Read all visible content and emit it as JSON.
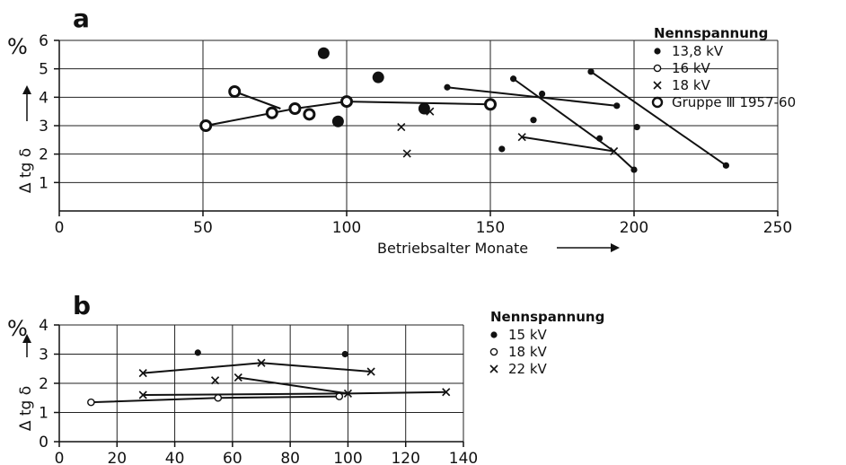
{
  "chart_data": [
    {
      "panel_label": "a",
      "type": "scatter",
      "xlabel": "Betriebsalter  Monate",
      "ylabel": "Δ tg δ",
      "y_unit": "%",
      "xlim": [
        0,
        250
      ],
      "ylim": [
        0,
        6
      ],
      "x_ticks": [
        "0",
        "50",
        "100",
        "150",
        "200",
        "250"
      ],
      "y_ticks": [
        "1",
        "2",
        "3",
        "4",
        "5",
        "6"
      ],
      "legend_title": "Nennspannung",
      "legend": [
        {
          "marker": "filled-dot",
          "label": "13,8 kV"
        },
        {
          "marker": "open-dot",
          "label": "16   kV"
        },
        {
          "marker": "cross",
          "label": "18   kV"
        },
        {
          "marker": "group-ring",
          "label": "Gruppe Ⅲ 1957-60"
        }
      ],
      "grid": true,
      "points": {
        "filled-dot": [
          [
            135,
            4.35
          ],
          [
            158,
            4.65
          ],
          [
            168,
            4.12
          ],
          [
            194,
            3.7
          ],
          [
            165,
            3.2
          ],
          [
            154,
            2.18
          ],
          [
            188,
            2.55
          ],
          [
            201,
            2.95
          ],
          [
            185,
            4.9
          ],
          [
            200,
            1.45
          ],
          [
            232,
            1.6
          ]
        ],
        "group-ring": [
          [
            51,
            3.0
          ],
          [
            61,
            4.2
          ],
          [
            74,
            3.45
          ],
          [
            82,
            3.6
          ],
          [
            87,
            3.4
          ],
          [
            100,
            3.85
          ],
          [
            150,
            3.75
          ]
        ],
        "group-filled": [
          [
            92,
            5.55
          ],
          [
            111,
            4.7
          ],
          [
            97,
            3.15
          ],
          [
            127,
            3.6
          ]
        ],
        "cross": [
          [
            119,
            2.95
          ],
          [
            121,
            2.02
          ],
          [
            129,
            3.5
          ],
          [
            161,
            2.6
          ],
          [
            193,
            2.1
          ]
        ]
      },
      "lines": [
        [
          [
            51,
            3.0
          ],
          [
            82,
            3.6
          ],
          [
            100,
            3.85
          ],
          [
            150,
            3.75
          ]
        ],
        [
          [
            61,
            4.2
          ],
          [
            77,
            3.6
          ]
        ],
        [
          [
            135,
            4.35
          ],
          [
            194,
            3.7
          ]
        ],
        [
          [
            158,
            4.65
          ],
          [
            193,
            2.1
          ]
        ],
        [
          [
            185,
            4.9
          ],
          [
            232,
            1.6
          ]
        ],
        [
          [
            161,
            2.6
          ],
          [
            193,
            2.1
          ]
        ],
        [
          [
            193,
            2.1
          ],
          [
            200,
            1.45
          ]
        ]
      ]
    },
    {
      "panel_label": "b",
      "type": "scatter",
      "xlabel": "",
      "ylabel": "Δ tg δ",
      "y_unit": "%",
      "xlim": [
        0,
        140
      ],
      "ylim": [
        0,
        4
      ],
      "x_ticks": [
        "0",
        "20",
        "40",
        "60",
        "80",
        "100",
        "120",
        "140"
      ],
      "y_ticks": [
        "0",
        "1",
        "2",
        "3",
        "4"
      ],
      "legend_title": "Nennspannung",
      "legend": [
        {
          "marker": "filled-dot",
          "label": "15  kV"
        },
        {
          "marker": "open-dot",
          "label": "18  kV"
        },
        {
          "marker": "cross",
          "label": "22 kV"
        }
      ],
      "grid": true,
      "points": {
        "filled-dot": [
          [
            48,
            3.05
          ],
          [
            99,
            3.0
          ]
        ],
        "open-dot": [
          [
            11,
            1.35
          ],
          [
            55,
            1.5
          ],
          [
            97,
            1.55
          ]
        ],
        "cross": [
          [
            29,
            2.35
          ],
          [
            70,
            2.7
          ],
          [
            108,
            2.4
          ],
          [
            29,
            1.6
          ],
          [
            54,
            2.1
          ],
          [
            62,
            2.2
          ],
          [
            100,
            1.65
          ],
          [
            134,
            1.7
          ]
        ]
      },
      "lines": [
        [
          [
            11,
            1.35
          ],
          [
            55,
            1.5
          ],
          [
            97,
            1.55
          ]
        ],
        [
          [
            29,
            2.35
          ],
          [
            70,
            2.7
          ],
          [
            108,
            2.4
          ]
        ],
        [
          [
            29,
            1.6
          ],
          [
            100,
            1.65
          ],
          [
            134,
            1.7
          ]
        ],
        [
          [
            62,
            2.2
          ],
          [
            100,
            1.65
          ]
        ]
      ]
    }
  ]
}
